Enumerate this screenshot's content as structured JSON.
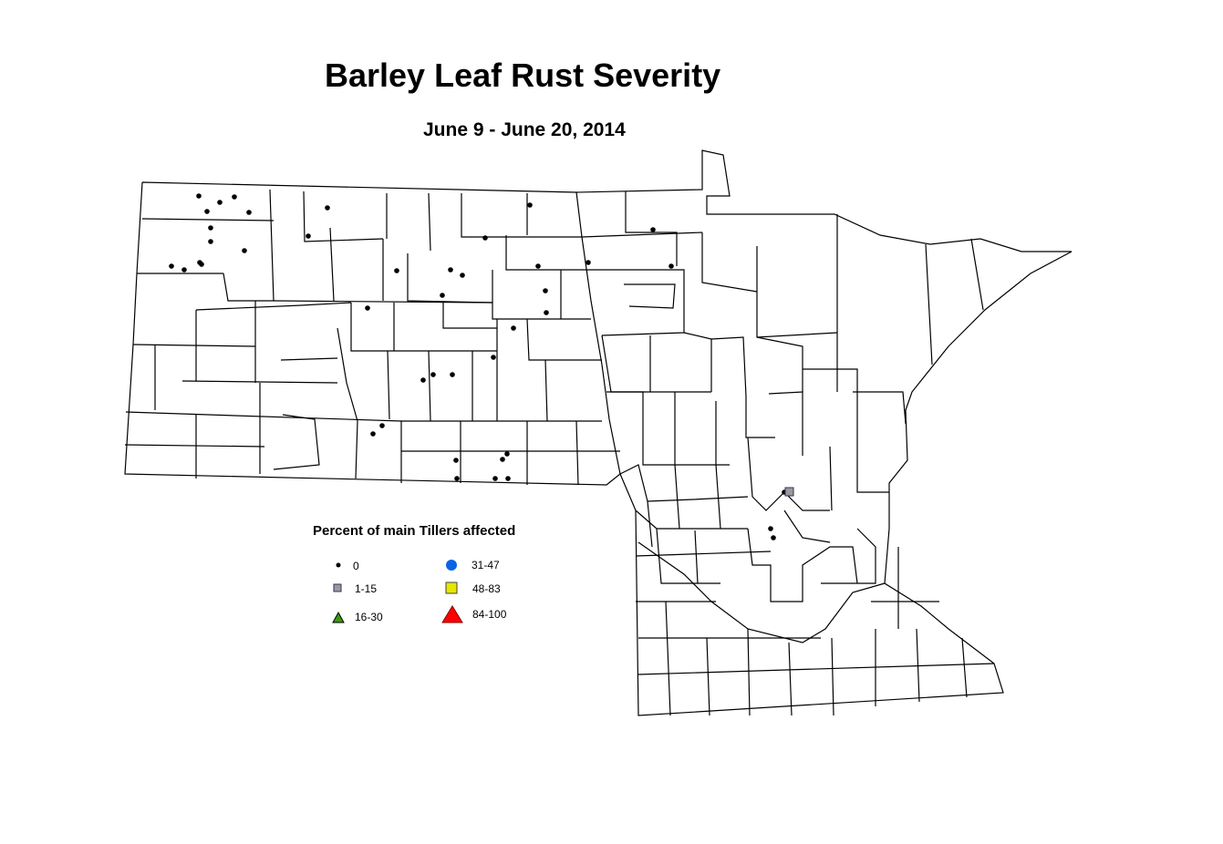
{
  "title": "Barley Leaf Rust Severity",
  "subtitle": "June 9 - June 20, 2014",
  "legend": {
    "title": "Percent of main Tillers affected",
    "items": [
      {
        "label": "0",
        "symbol": "dot",
        "color": "#000000"
      },
      {
        "label": "1-15",
        "symbol": "square",
        "color": "#9a9a9a"
      },
      {
        "label": "16-30",
        "symbol": "triangle",
        "color": "#3a9a10"
      },
      {
        "label": "31-47",
        "symbol": "circle",
        "color": "#0a64e6"
      },
      {
        "label": "48-83",
        "symbol": "square",
        "color": "#e6e600"
      },
      {
        "label": "84-100",
        "symbol": "triangle",
        "color": "#ff0000"
      }
    ]
  }
}
